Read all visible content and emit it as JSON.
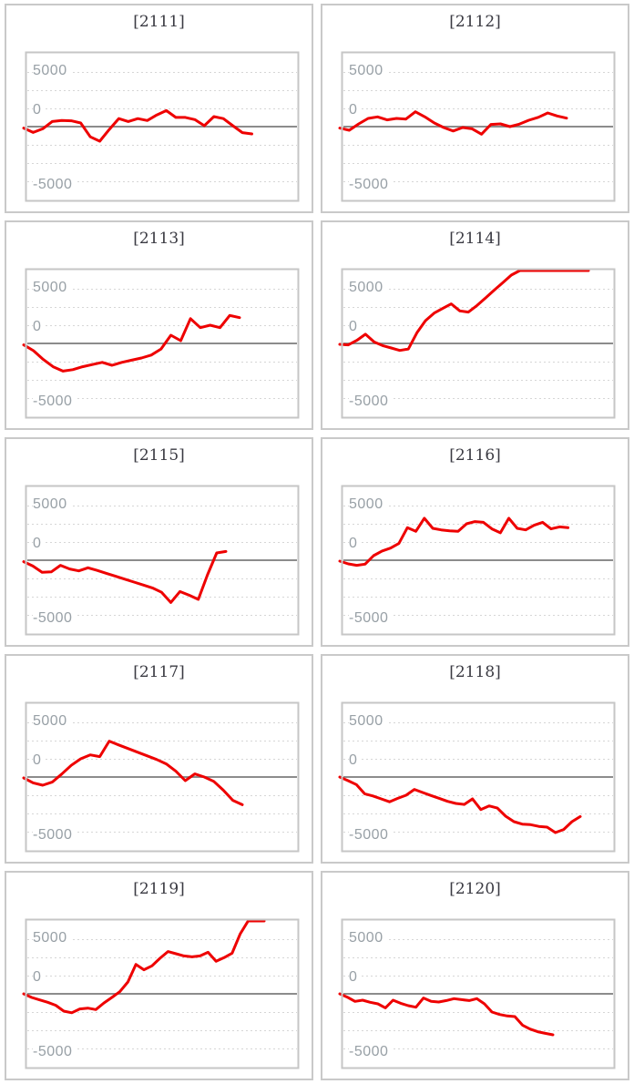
{
  "axis": {
    "tick_labels": [
      "5000",
      "0",
      "-5000"
    ],
    "y_max": 5000,
    "y_min": -5000
  },
  "style": {
    "series_color": "#ee0000",
    "zero_line_color": "#8c8c8c",
    "grid_color": "#d6d6d6",
    "plot_border_color": "#c6c6c6",
    "cell_border_color": "#c9c9c9",
    "title_color": "#3a3a42",
    "label_color": "#98a0a6",
    "background": "#ffffff"
  },
  "chart_data": [
    {
      "type": "line",
      "title": "[2111]",
      "ylim": [
        -5000,
        5000
      ],
      "yticks": [
        5000,
        0,
        -5000
      ],
      "grid": "dotted",
      "legend": "none",
      "x_span": 0.835,
      "values": [
        -100,
        -400,
        -150,
        350,
        420,
        400,
        250,
        -700,
        -1000,
        -200,
        550,
        350,
        550,
        420,
        800,
        1100,
        630,
        630,
        480,
        60,
        690,
        550,
        60,
        -410,
        -500
      ]
    },
    {
      "type": "line",
      "title": "[2112]",
      "ylim": [
        -5000,
        5000
      ],
      "yticks": [
        5000,
        0,
        -5000
      ],
      "grid": "dotted",
      "legend": "none",
      "x_span": 0.83,
      "values": [
        -100,
        -250,
        190,
        560,
        670,
        460,
        560,
        520,
        1020,
        670,
        250,
        -60,
        -300,
        -60,
        -150,
        -520,
        150,
        190,
        0,
        170,
        440,
        640,
        940,
        730,
        580
      ]
    },
    {
      "type": "line",
      "title": "[2113]",
      "ylim": [
        -5000,
        5000
      ],
      "yticks": [
        5000,
        0,
        -5000
      ],
      "grid": "dotted",
      "legend": "none",
      "x_span": 0.79,
      "values": [
        -100,
        -500,
        -1100,
        -1600,
        -1900,
        -1800,
        -1600,
        -1450,
        -1300,
        -1500,
        -1300,
        -1150,
        -1000,
        -800,
        -380,
        560,
        190,
        1700,
        1080,
        1250,
        1080,
        1920,
        1770
      ]
    },
    {
      "type": "line",
      "title": "[2114]",
      "ylim": [
        -5000,
        5000
      ],
      "yticks": [
        5000,
        0,
        -5000
      ],
      "grid": "dotted",
      "legend": "none",
      "x_span": 0.91,
      "values": [
        -60,
        -100,
        210,
        630,
        100,
        -150,
        -310,
        -480,
        -380,
        730,
        1560,
        2080,
        2400,
        2710,
        2230,
        2150,
        2600,
        3120,
        3650,
        4160,
        4690,
        5000,
        5000,
        5000,
        5000,
        5000,
        5000,
        5000,
        5000,
        5000
      ]
    },
    {
      "type": "line",
      "title": "[2115]",
      "ylim": [
        -5000,
        5000
      ],
      "yticks": [
        5000,
        0,
        -5000
      ],
      "grid": "dotted",
      "legend": "none",
      "x_span": 0.74,
      "values": [
        -100,
        -400,
        -830,
        -800,
        -350,
        -600,
        -730,
        -520,
        -700,
        -900,
        -1100,
        -1300,
        -1500,
        -1700,
        -1900,
        -2200,
        -2900,
        -2150,
        -2400,
        -2690,
        -1000,
        500,
        600
      ]
    },
    {
      "type": "line",
      "title": "[2116]",
      "ylim": [
        -5000,
        5000
      ],
      "yticks": [
        5000,
        0,
        -5000
      ],
      "grid": "dotted",
      "legend": "none",
      "x_span": 0.835,
      "values": [
        -60,
        -250,
        -350,
        -270,
        310,
        630,
        830,
        1150,
        2230,
        1980,
        2880,
        2190,
        2080,
        2020,
        1980,
        2500,
        2650,
        2600,
        2150,
        1880,
        2880,
        2190,
        2080,
        2400,
        2600,
        2150,
        2290,
        2230
      ]
    },
    {
      "type": "line",
      "title": "[2117]",
      "ylim": [
        -5000,
        5000
      ],
      "yticks": [
        5000,
        0,
        -5000
      ],
      "grid": "dotted",
      "legend": "none",
      "x_span": 0.8,
      "values": [
        -60,
        -400,
        -560,
        -350,
        200,
        800,
        1250,
        1520,
        1400,
        2460,
        2200,
        1950,
        1700,
        1450,
        1200,
        900,
        400,
        -250,
        210,
        0,
        -300,
        -900,
        -1600,
        -1900
      ]
    },
    {
      "type": "line",
      "title": "[2118]",
      "ylim": [
        -5000,
        5000
      ],
      "yticks": [
        5000,
        0,
        -5000
      ],
      "grid": "dotted",
      "legend": "none",
      "x_span": 0.88,
      "values": [
        0,
        -250,
        -520,
        -1150,
        -1300,
        -1500,
        -1700,
        -1460,
        -1250,
        -850,
        -1060,
        -1270,
        -1460,
        -1670,
        -1810,
        -1880,
        -1500,
        -2230,
        -1980,
        -2130,
        -2690,
        -3060,
        -3230,
        -3270,
        -3390,
        -3440,
        -3810,
        -3600,
        -3060,
        -2710
      ]
    },
    {
      "type": "line",
      "title": "[2119]",
      "ylim": [
        -5000,
        5000
      ],
      "yticks": [
        5000,
        0,
        -5000
      ],
      "grid": "dotted",
      "legend": "none",
      "x_span": 0.88,
      "values": [
        0,
        -250,
        -420,
        -580,
        -790,
        -1190,
        -1300,
        -1040,
        -980,
        -1080,
        -630,
        -250,
        150,
        810,
        2020,
        1650,
        1920,
        2440,
        2900,
        2750,
        2600,
        2540,
        2600,
        2850,
        2230,
        2480,
        2790,
        4100,
        5000,
        5000,
        5000
      ]
    },
    {
      "type": "line",
      "title": "[2120]",
      "ylim": [
        -5000,
        5000
      ],
      "yticks": [
        5000,
        0,
        -5000
      ],
      "grid": "dotted",
      "legend": "none",
      "x_span": 0.78,
      "values": [
        0,
        -230,
        -520,
        -440,
        -580,
        -690,
        -960,
        -440,
        -650,
        -810,
        -920,
        -290,
        -520,
        -560,
        -460,
        -330,
        -400,
        -460,
        -330,
        -690,
        -1250,
        -1420,
        -1520,
        -1560,
        -2150,
        -2420,
        -2600,
        -2710,
        -2810
      ]
    }
  ]
}
